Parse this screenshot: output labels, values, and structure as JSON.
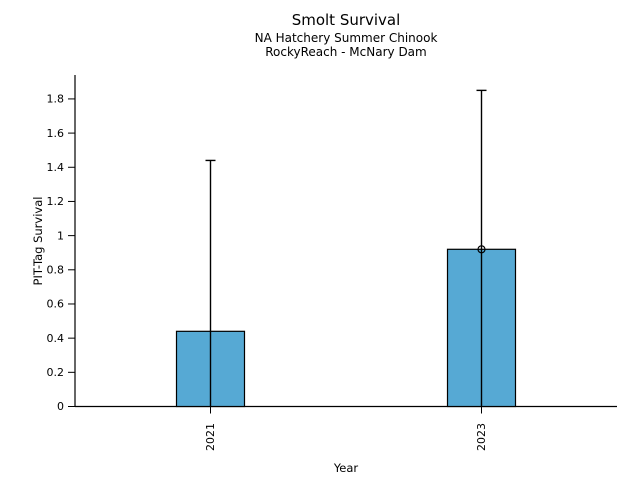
{
  "figure": {
    "title": "Smolt Survival",
    "subtitle_line1": "NA Hatchery Summer Chinook",
    "subtitle_line2": "RockyReach - McNary Dam",
    "xlabel": "Year",
    "ylabel": "PIT-Tag Survival"
  },
  "chart_data": {
    "type": "bar",
    "title": "Smolt Survival",
    "subtitle": [
      "NA Hatchery Summer Chinook",
      "RockyReach - McNary Dam"
    ],
    "xlabel": "Year",
    "ylabel": "PIT-Tag Survival",
    "categories": [
      "2021",
      "2023"
    ],
    "series": [
      {
        "name": "PIT-Tag Survival",
        "values": [
          0.44,
          0.92
        ]
      }
    ],
    "error_bars": {
      "lower": [
        0,
        0
      ],
      "upper": [
        1.44,
        1.85
      ]
    },
    "markers": [
      {
        "category": "2023",
        "value": 0.92,
        "style": "open-circle"
      }
    ],
    "ytick_labels": [
      "0",
      "0.2",
      "0.4",
      "0.6",
      "0.8",
      "1",
      "1.2",
      "1.4",
      "1.6",
      "1.8"
    ],
    "ytick_values": [
      0,
      0.2,
      0.4,
      0.6,
      0.8,
      1,
      1.2,
      1.4,
      1.6,
      1.8
    ],
    "ylim": [
      0,
      1.94
    ],
    "grid": false,
    "legend": false,
    "bar_color": "#56a9d4",
    "bar_edge_color": "#000000",
    "error_color": "#000000",
    "axis_color": "#000000",
    "background": "#ffffff"
  }
}
